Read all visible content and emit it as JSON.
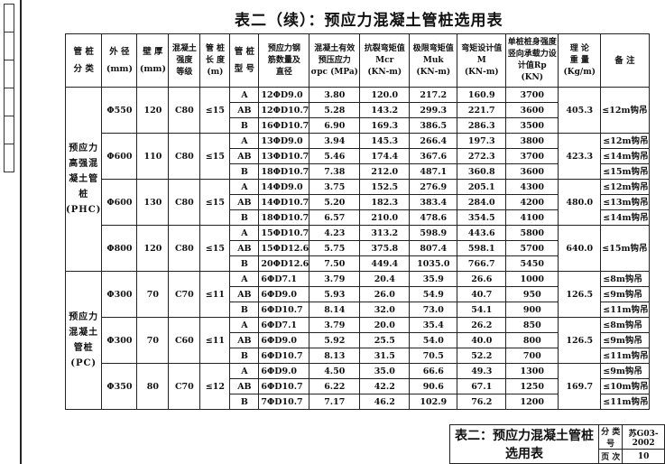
{
  "title": "表二（续）：预应力混凝土管桩选用表",
  "headers": [
    "管 桩\n分 类",
    "外 径\n(mm)",
    "壁 厚\n(mm)",
    "混凝土\n强度\n等级",
    "管 桩\n长 度\n(m)",
    "管 桩\n型 号",
    "预应力钢\n筋数量及\n直径",
    "混凝土有效\n预压应力\nσpc (MPa)",
    "抗裂弯矩值\nMcr\n(KN-m)",
    "极限弯矩值\nMuk\n(KN-m)",
    "弯矩设计值\nM\n(KN-m)",
    "单桩桩身强度\n竖向承载力设\n计值Rp (KN)",
    "理 论\n重 量\n(Kg/m)",
    "备 注"
  ],
  "groups": [
    {
      "label": "预应力高强混凝土管桩(PHC)",
      "subgroups": [
        {
          "diameter": "Φ550",
          "wall": "120",
          "grade": "C80",
          "length": "≤15",
          "weight": "405.3",
          "remarks": [
            "≤12m钩吊"
          ],
          "rows": [
            [
              "A",
              "12ΦD9.0",
              "3.80",
              "120.0",
              "217.2",
              "160.9",
              "3700"
            ],
            [
              "AB",
              "12ΦD10.7",
              "5.28",
              "143.2",
              "299.3",
              "221.7",
              "3600"
            ],
            [
              "B",
              "16ΦD10.7",
              "6.90",
              "169.3",
              "386.5",
              "286.3",
              "3500"
            ]
          ]
        },
        {
          "diameter": "Φ600",
          "wall": "110",
          "grade": "C80",
          "length": "≤15",
          "weight": "423.3",
          "remarks": [
            "≤12m钩吊",
            "≤14m钩吊",
            "≤15m钩吊"
          ],
          "rows": [
            [
              "A",
              "13ΦD9.0",
              "3.94",
              "145.3",
              "266.4",
              "197.3",
              "3800"
            ],
            [
              "AB",
              "13ΦD10.7",
              "5.46",
              "174.4",
              "367.6",
              "272.3",
              "3700"
            ],
            [
              "B",
              "18ΦD10.7",
              "7.38",
              "212.0",
              "487.1",
              "360.8",
              "3600"
            ]
          ]
        },
        {
          "diameter": "Φ600",
          "wall": "130",
          "grade": "C80",
          "length": "≤15",
          "weight": "480.0",
          "remarks": [
            "≤12m钩吊",
            "≤13m钩吊",
            "≤14m钩吊"
          ],
          "rows": [
            [
              "A",
              "14ΦD9.0",
              "3.75",
              "152.5",
              "276.9",
              "205.1",
              "4300"
            ],
            [
              "AB",
              "14ΦD10.7",
              "5.20",
              "182.3",
              "383.4",
              "284.0",
              "4200"
            ],
            [
              "B",
              "18ΦD10.7",
              "6.57",
              "210.0",
              "478.6",
              "354.5",
              "4100"
            ]
          ]
        },
        {
          "diameter": "Φ800",
          "wall": "120",
          "grade": "C80",
          "length": "≤15",
          "weight": "640.0",
          "remarks": [
            "≤15m钩吊"
          ],
          "rows": [
            [
              "A",
              "15ΦD10.7",
              "4.23",
              "313.2",
              "598.9",
              "443.6",
              "5800"
            ],
            [
              "AB",
              "15ΦD12.6",
              "5.75",
              "375.8",
              "807.4",
              "598.1",
              "5700"
            ],
            [
              "B",
              "20ΦD12.6",
              "7.50",
              "449.4",
              "1035.0",
              "766.7",
              "5450"
            ]
          ]
        }
      ]
    },
    {
      "label": "预应力混凝土管桩(PC)",
      "subgroups": [
        {
          "diameter": "Φ300",
          "wall": "70",
          "grade": "C70",
          "length": "≤11",
          "weight": "126.5",
          "remarks": [
            "≤8m钩吊",
            "≤9m钩吊",
            "≤11m钩吊"
          ],
          "rows": [
            [
              "A",
              "6ΦD7.1",
              "3.79",
              "20.4",
              "35.9",
              "26.6",
              "1000"
            ],
            [
              "AB",
              "6ΦD9.0",
              "5.93",
              "26.0",
              "54.9",
              "40.7",
              "950"
            ],
            [
              "B",
              "6ΦD10.7",
              "8.14",
              "32.0",
              "73.0",
              "54.1",
              "900"
            ]
          ]
        },
        {
          "diameter": "Φ300",
          "wall": "70",
          "grade": "C60",
          "length": "≤11",
          "weight": "126.5",
          "remarks": [
            "≤8m钩吊",
            "≤9m钩吊",
            "≤11m钩吊"
          ],
          "rows": [
            [
              "A",
              "6ΦD7.1",
              "3.79",
              "20.0",
              "35.4",
              "26.2",
              "850"
            ],
            [
              "AB",
              "6ΦD9.0",
              "5.92",
              "25.5",
              "54.0",
              "40.0",
              "800"
            ],
            [
              "B",
              "6ΦD10.7",
              "8.13",
              "31.5",
              "70.5",
              "52.2",
              "700"
            ]
          ]
        },
        {
          "diameter": "Φ350",
          "wall": "80",
          "grade": "C70",
          "length": "≤12",
          "weight": "169.7",
          "remarks": [
            "≤9m钩吊",
            "≤10m钩吊",
            "≤11m钩吊"
          ],
          "rows": [
            [
              "A",
              "6ΦD9.0",
              "4.50",
              "35.0",
              "66.6",
              "49.3",
              "1300"
            ],
            [
              "AB",
              "6ΦD10.7",
              "6.22",
              "42.2",
              "90.6",
              "67.1",
              "1250"
            ],
            [
              "B",
              "7ΦD10.7",
              "7.17",
              "46.2",
              "102.9",
              "76.2",
              "1200"
            ]
          ]
        }
      ]
    }
  ],
  "title_block": {
    "name": "表二：预应力混凝土管桩选用表",
    "category_label": "分 类 号",
    "category_value": "苏G03-2002",
    "page_label": "页 次",
    "page_value": "10"
  }
}
